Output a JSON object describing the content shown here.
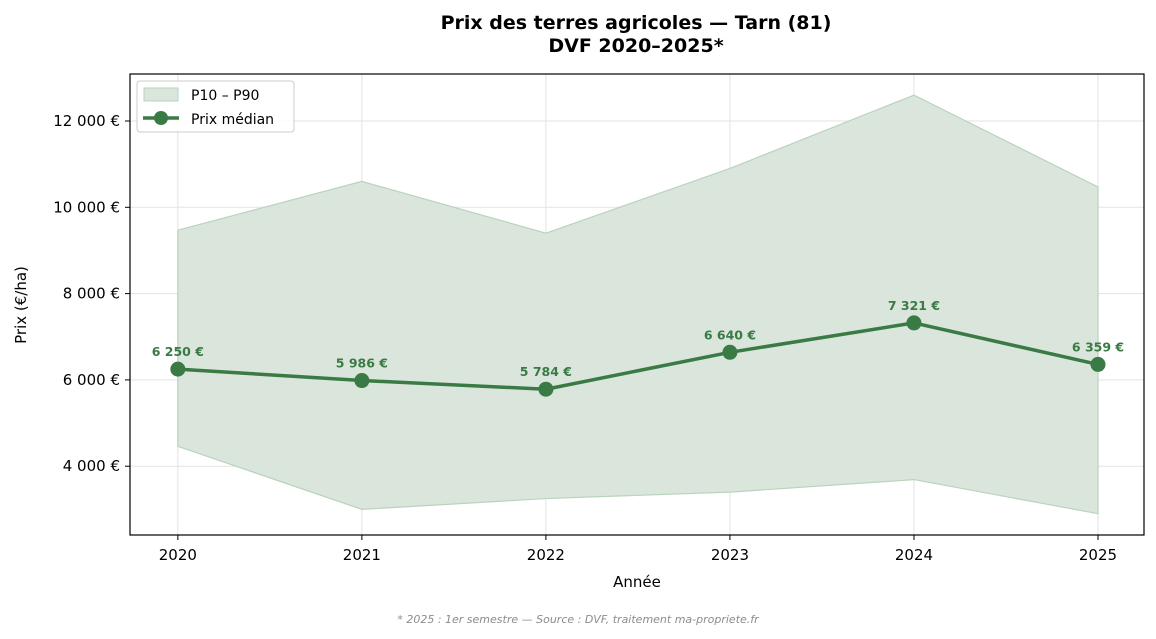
{
  "chart_data": {
    "type": "line",
    "title": "Prix des terres agricoles — Tarn (81)",
    "subtitle": "DVF 2020–2025*",
    "xlabel": "Année",
    "ylabel": "Prix (€/ha)",
    "x": [
      "2020",
      "2021",
      "2022",
      "2023",
      "2024",
      "2025"
    ],
    "series": [
      {
        "name": "Prix médian",
        "type": "line",
        "color": "#3a7a44",
        "values": [
          6250,
          5986,
          5784,
          6640,
          7321,
          6359
        ],
        "labels": [
          "6 250 €",
          "5 986 €",
          "5 784 €",
          "6 640 €",
          "7 321 €",
          "6 359 €"
        ]
      },
      {
        "name": "P10 – P90",
        "type": "area-band",
        "color": "#dae6dc",
        "edge_color": "#b9d3bd",
        "lower": [
          4460,
          3000,
          3250,
          3400,
          3690,
          2900
        ],
        "upper": [
          9470,
          10600,
          9400,
          10900,
          12600,
          10470
        ]
      }
    ],
    "yticks": [
      4000,
      6000,
      8000,
      10000,
      12000
    ],
    "ytick_labels": [
      "4 000 €",
      "6 000 €",
      "8 000 €",
      "10 000 €",
      "12 000 €"
    ],
    "ylim": [
      2406,
      13089
    ],
    "xlim": [
      -0.26,
      5.25
    ],
    "grid": true,
    "legend": {
      "position": "upper left",
      "entries": [
        "P10 – P90",
        "Prix médian"
      ]
    },
    "footnote": "* 2025 : 1er semestre — Source : DVF, traitement ma-propriete.fr"
  }
}
